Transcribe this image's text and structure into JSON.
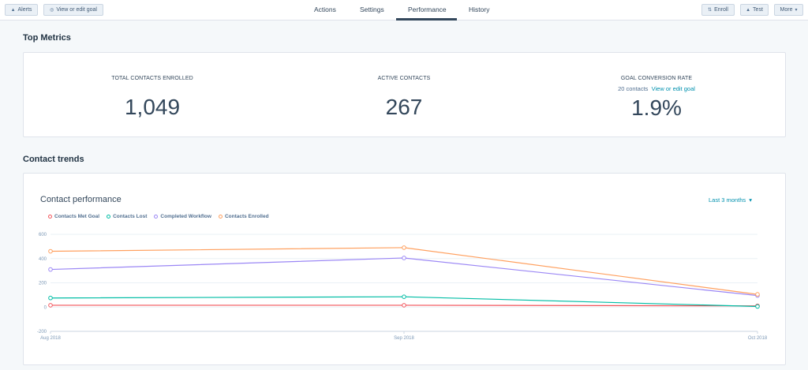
{
  "toolbar": {
    "alerts_label": "Alerts",
    "view_goal_label": "View or edit goal",
    "enroll_label": "Enroll",
    "test_label": "Test",
    "more_label": "More"
  },
  "tabs": [
    {
      "label": "Actions"
    },
    {
      "label": "Settings"
    },
    {
      "label": "Performance",
      "active": true
    },
    {
      "label": "History"
    }
  ],
  "top_metrics": {
    "heading": "Top Metrics",
    "total_enrolled": {
      "label": "TOTAL CONTACTS ENROLLED",
      "value": "1,049"
    },
    "active": {
      "label": "ACTIVE CONTACTS",
      "value": "267"
    },
    "goal_conversion": {
      "label": "GOAL CONVERSION RATE",
      "sub_count": "20 contacts",
      "sub_link": "View or edit goal",
      "value": "1.9%"
    }
  },
  "contact_trends": {
    "heading": "Contact trends",
    "chart_title": "Contact performance",
    "range_label": "Last 3 months"
  },
  "chart_data": {
    "type": "line",
    "title": "Contact performance",
    "x": [
      "Aug 2018",
      "Sep 2018",
      "Oct 2018"
    ],
    "ylim": [
      -200,
      600
    ],
    "yticks": [
      -200,
      0,
      200,
      400,
      600
    ],
    "grid": true,
    "legend_position": "top-left",
    "series": [
      {
        "name": "Contacts Met Goal",
        "color": "#f2545b",
        "values": [
          15,
          15,
          10
        ]
      },
      {
        "name": "Contacts Lost",
        "color": "#00bda5",
        "values": [
          75,
          85,
          5
        ]
      },
      {
        "name": "Completed Workflow",
        "color": "#9b87f5",
        "values": [
          310,
          405,
          95
        ]
      },
      {
        "name": "Contacts Enrolled",
        "color": "#ffa05f",
        "values": [
          460,
          490,
          105
        ]
      }
    ]
  }
}
